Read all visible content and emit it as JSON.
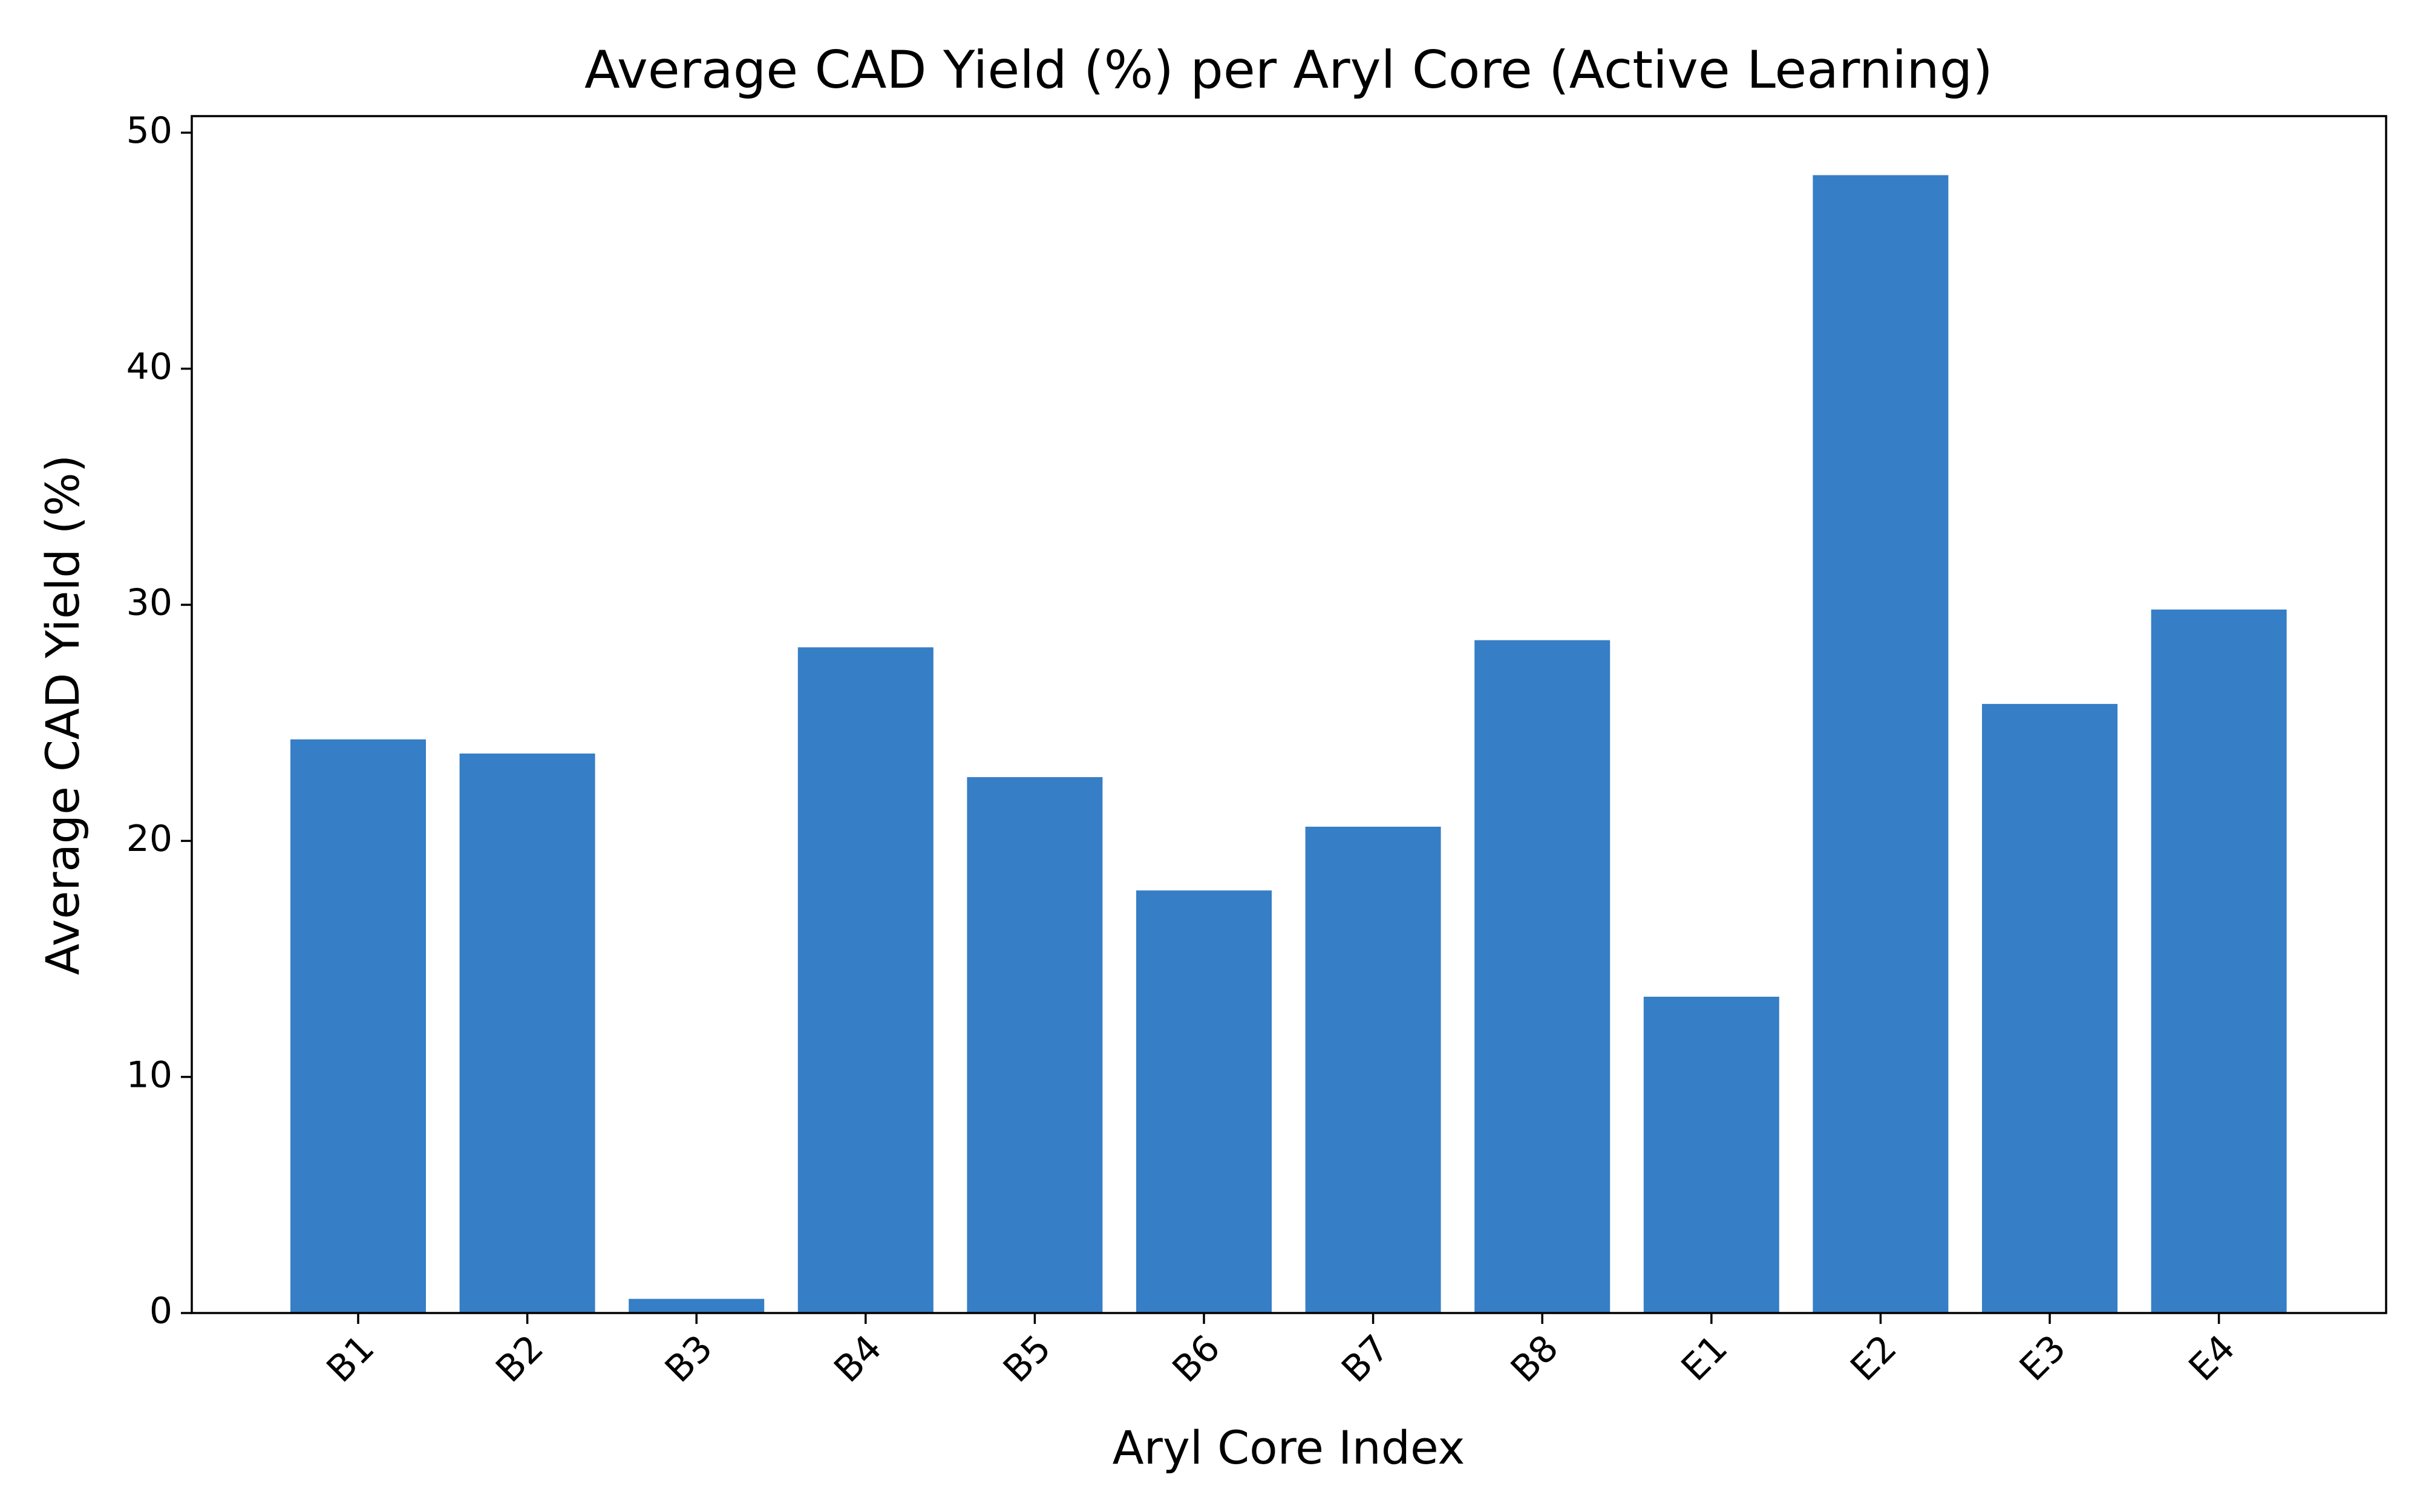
{
  "chart_data": {
    "type": "bar",
    "title": "Average CAD Yield (%) per Aryl Core (Active Learning)",
    "xlabel": "Aryl Core Index",
    "ylabel": "Average CAD Yield (%)",
    "categories": [
      "B1",
      "B2",
      "B3",
      "B4",
      "B5",
      "B6",
      "B7",
      "B8",
      "E1",
      "E2",
      "E3",
      "E4"
    ],
    "values": [
      24.3,
      23.7,
      0.6,
      28.2,
      22.7,
      17.9,
      20.6,
      28.5,
      13.4,
      48.2,
      25.8,
      29.8
    ],
    "ylim": [
      0,
      50.7
    ],
    "yticks": [
      0,
      10,
      20,
      30,
      40,
      50
    ],
    "bar_color": "#367ec6",
    "grid": false,
    "legend": "none"
  }
}
